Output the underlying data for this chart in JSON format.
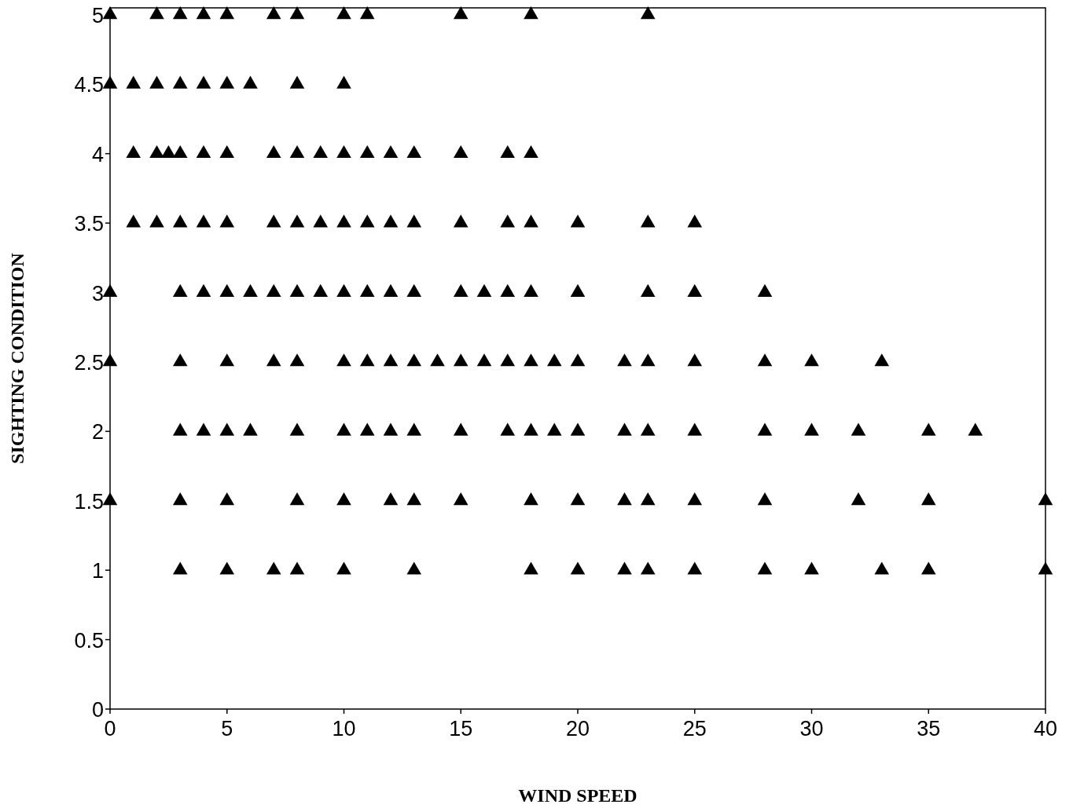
{
  "chart_data": {
    "type": "scatter",
    "xlabel": "WIND SPEED",
    "ylabel": "SIGHTING CONDITION",
    "marker": "triangle",
    "grid": false,
    "xlim": [
      0,
      40
    ],
    "xticks": [
      0,
      5,
      10,
      15,
      20,
      25,
      30,
      35,
      40
    ],
    "ylim": [
      0,
      5.05
    ],
    "yticks": [
      0,
      0.5,
      1,
      1.5,
      2,
      2.5,
      3,
      3.5,
      4,
      4.5,
      5
    ],
    "series": [
      {
        "color": "#000000",
        "x": [
          0,
          2,
          3,
          4,
          5,
          7,
          8,
          10,
          11,
          15,
          18,
          23,
          0,
          1,
          2,
          3,
          4,
          5,
          6,
          8,
          10,
          1,
          2,
          2.5,
          3,
          4,
          5,
          7,
          8,
          9,
          10,
          11,
          12,
          13,
          15,
          17,
          18,
          1,
          2,
          3,
          4,
          5,
          7,
          8,
          9,
          10,
          11,
          12,
          13,
          15,
          17,
          18,
          20,
          23,
          25,
          0,
          3,
          4,
          5,
          6,
          7,
          8,
          9,
          10,
          11,
          12,
          13,
          15,
          16,
          17,
          18,
          20,
          23,
          25,
          28,
          0,
          3,
          5,
          7,
          8,
          10,
          11,
          12,
          13,
          14,
          15,
          16,
          17,
          18,
          19,
          20,
          22,
          23,
          25,
          28,
          30,
          33,
          3,
          4,
          5,
          6,
          8,
          10,
          11,
          12,
          13,
          15,
          17,
          18,
          19,
          20,
          22,
          23,
          25,
          28,
          30,
          32,
          35,
          37,
          0,
          3,
          5,
          8,
          10,
          12,
          13,
          15,
          18,
          20,
          22,
          23,
          25,
          28,
          32,
          35,
          40,
          3,
          5,
          7,
          8,
          10,
          13,
          18,
          20,
          22,
          23,
          25,
          28,
          30,
          33,
          35,
          40
        ],
        "values": [
          5,
          5,
          5,
          5,
          5,
          5,
          5,
          5,
          5,
          5,
          5,
          5,
          4.5,
          4.5,
          4.5,
          4.5,
          4.5,
          4.5,
          4.5,
          4.5,
          4.5,
          4,
          4,
          4,
          4,
          4,
          4,
          4,
          4,
          4,
          4,
          4,
          4,
          4,
          4,
          4,
          4,
          3.5,
          3.5,
          3.5,
          3.5,
          3.5,
          3.5,
          3.5,
          3.5,
          3.5,
          3.5,
          3.5,
          3.5,
          3.5,
          3.5,
          3.5,
          3.5,
          3.5,
          3.5,
          3,
          3,
          3,
          3,
          3,
          3,
          3,
          3,
          3,
          3,
          3,
          3,
          3,
          3,
          3,
          3,
          3,
          3,
          3,
          3,
          2.5,
          2.5,
          2.5,
          2.5,
          2.5,
          2.5,
          2.5,
          2.5,
          2.5,
          2.5,
          2.5,
          2.5,
          2.5,
          2.5,
          2.5,
          2.5,
          2.5,
          2.5,
          2.5,
          2.5,
          2.5,
          2.5,
          2,
          2,
          2,
          2,
          2,
          2,
          2,
          2,
          2,
          2,
          2,
          2,
          2,
          2,
          2,
          2,
          2,
          2,
          2,
          2,
          2,
          2,
          1.5,
          1.5,
          1.5,
          1.5,
          1.5,
          1.5,
          1.5,
          1.5,
          1.5,
          1.5,
          1.5,
          1.5,
          1.5,
          1.5,
          1.5,
          1.5,
          1.5,
          1,
          1,
          1,
          1,
          1,
          1,
          1,
          1,
          1,
          1,
          1,
          1,
          1,
          1,
          1,
          1
        ]
      }
    ]
  }
}
